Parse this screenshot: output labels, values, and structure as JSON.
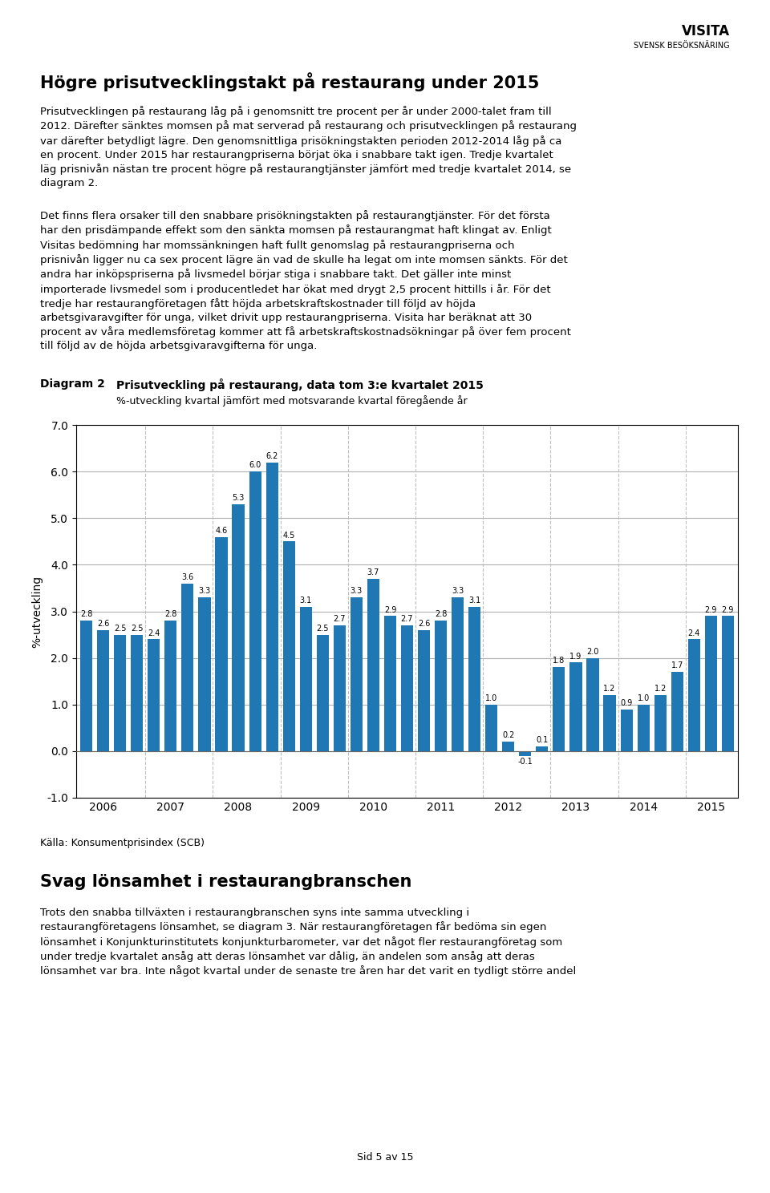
{
  "chart_data": {
    "type": "bar",
    "title": "Prisutveckling på restaurang, data tom 3:e kvartalet 2015",
    "subtitle": "%-utveckling kvartal jämfört med motsvarande kvartal föregående år",
    "ylabel": "%-utveckling",
    "categories": [
      null,
      "2006",
      null,
      null,
      null,
      "2007",
      null,
      null,
      null,
      "2008",
      null,
      null,
      null,
      "2009",
      null,
      null,
      null,
      "2010",
      null,
      null,
      null,
      "2011",
      null,
      null,
      null,
      "2012",
      null,
      null,
      null,
      "2013",
      null,
      null,
      null,
      "2014",
      null,
      null,
      null,
      "2015",
      null
    ],
    "values": [
      2.8,
      2.6,
      2.5,
      2.5,
      2.4,
      2.8,
      3.6,
      3.3,
      4.6,
      5.3,
      6.0,
      6.2,
      4.5,
      3.1,
      2.5,
      2.7,
      3.3,
      3.7,
      2.9,
      2.7,
      2.6,
      2.8,
      3.3,
      3.1,
      1.0,
      0.2,
      -0.1,
      0.1,
      1.8,
      1.9,
      2.0,
      1.2,
      0.9,
      1.0,
      1.2,
      1.7,
      2.4,
      2.9,
      2.9
    ],
    "value_labels": [
      "2.8",
      "2.6",
      "2.5",
      "2.5",
      "2.4",
      "2.8",
      "3.6",
      "3.3",
      "4.6",
      "5.3",
      "6.0",
      "6.2",
      "4.5",
      "3.1",
      "2.5",
      "2.7",
      "3.3",
      "3.7",
      "2.9",
      "2.7",
      "2.6",
      "2.8",
      "3.3",
      "3.1",
      "1.0",
      "0.2",
      "-0.1",
      "0.1",
      "1.8",
      "1.9",
      "2.0",
      "1.2",
      "0.9",
      "1.0",
      "1.2",
      "1.7",
      "2.4",
      "2.9",
      "2.9"
    ],
    "data_labels": true,
    "ylim": [
      -1.0,
      7.0
    ],
    "yticks": [
      {
        "value": -1.0,
        "label": "-1.0"
      },
      {
        "value": 0.0,
        "label": "0.0"
      },
      {
        "value": 1.0,
        "label": "1.0"
      },
      {
        "value": 2.0,
        "label": "2.0"
      },
      {
        "value": 3.0,
        "label": "3.0"
      },
      {
        "value": 4.0,
        "label": "4.0"
      },
      {
        "value": 5.0,
        "label": "5.0"
      },
      {
        "value": 6.0,
        "label": "6.0"
      },
      {
        "value": 7.0,
        "label": "7.0"
      }
    ],
    "grid": true,
    "annotations": [
      "VISITA",
      "SVENSK BESÖKSNÄRING",
      "Högre prisutvecklingstakt på restaurang under 2015",
      "Prisutvecklingen på restaurang låg på i genomsnitt tre procent per år under 2000-talet fram till\n2012. Därefter sänktes momsen på mat serverad på restaurang och prisutvecklingen på restaurang\nvar därefter betydligt lägre. Den genomsnittliga prisökningstakten perioden 2012-2014 låg på ca\nen procent. Under 2015 har restaurangpriserna börjat öka i snabbare takt igen. Tredje kvartalet\nläg prisnivån nästan tre procent högre på restaurangtjänster jämfört med tredje kvartalet 2014, se\ndiagram 2.",
      "Det finns flera orsaker till den snabbare prisökningstakten på restaurangtjänster. För det första\nhar den prisdämpande effekt som den sänkta momsen på restaurangmat haft klingat av. Enligt\nVisitas bedömning har momssänkningen haft fullt genomslag på restaurangpriserna och\nprisnivån ligger nu ca sex procent lägre än vad de skulle ha legat om inte momsen sänkts. För det\nandra har inköpspriserna på livsmedel börjar stiga i snabbare takt. Det gäller inte minst\nimporterade livsmedel som i producentledet har ökat med drygt 2,5 procent hittills i år. För det\ntredje har restaurangföretagen fått höjda arbetskraftskostnader till följd av höjda\narbetsgivaravgifter för unga, vilket drivit upp restaurangpriserna. Visita har beräknat att 30\nprocent av våra medlemsföretag kommer att få arbetskraftskostnadsökningar på över fem procent\ntill följd av de höjda arbetsgivaravgifterna för unga.",
      "Diagram 2",
      "Källa: Konsumentprisindex (SCB)",
      "Svag lönsamhet i restaurangbranschen",
      "Trots den snabba tillväxten i restaurangbranschen syns inte samma utveckling i\nrestaurangföretagens lönsamhet, se diagram 3. När restaurangföretagen får bedöma sin egen\nlönsamhet i Konjunkturinstitutets konjunkturbarometer, var det något fler restaurangföretag som\nunder tredje kvartalet ansåg att deras lönsamhet var dålig, än andelen som ansåg att deras\nlönsamhet var bra. Inte något kvartal under de senaste tre åren har det varit en tydligt större andel",
      "Sid 5 av 15"
    ]
  }
}
